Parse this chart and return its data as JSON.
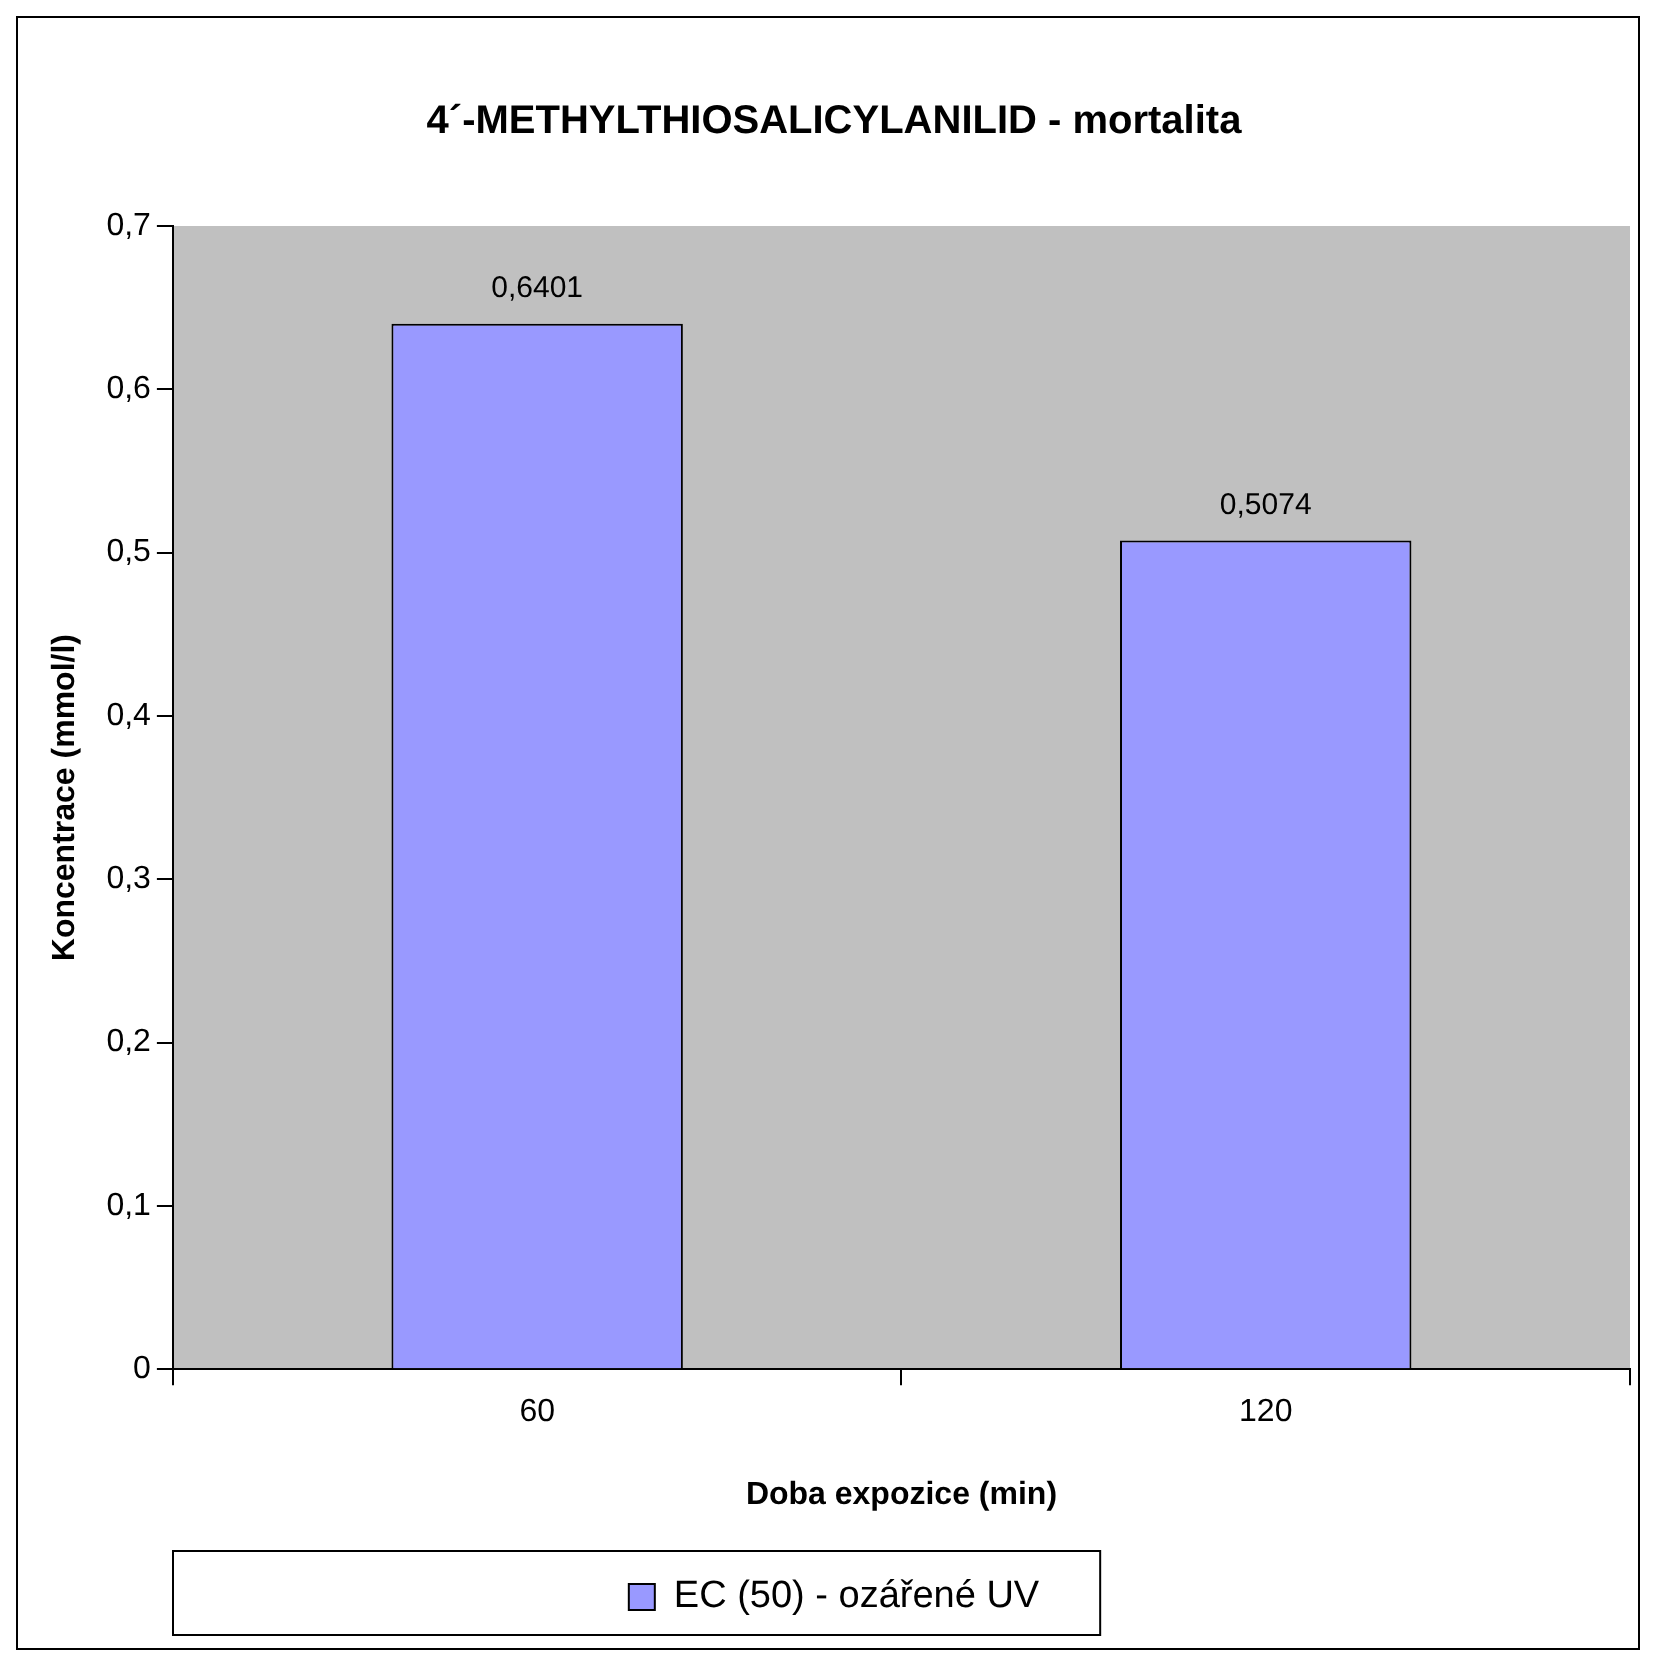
{
  "chart_data": {
    "type": "bar",
    "title": "4´-METHYLTHIOSALICYLANILID - mortalita",
    "xlabel": "Doba expozice (min)",
    "ylabel": "Koncentrace (mmol/l)",
    "categories": [
      "60",
      "120"
    ],
    "series": [
      {
        "name": "EC (50) - ozářené UV",
        "color": "#9999ff",
        "values": [
          0.6401,
          0.5074
        ],
        "value_labels": [
          "0,6401",
          "0,5074"
        ]
      }
    ],
    "ylim": [
      0,
      0.7
    ],
    "yticks": [
      {
        "value": 0,
        "label": "0"
      },
      {
        "value": 0.1,
        "label": "0,1"
      },
      {
        "value": 0.2,
        "label": "0,2"
      },
      {
        "value": 0.3,
        "label": "0,3"
      },
      {
        "value": 0.4,
        "label": "0,4"
      },
      {
        "value": 0.5,
        "label": "0,5"
      },
      {
        "value": 0.6,
        "label": "0,6"
      },
      {
        "value": 0.7,
        "label": "0,7"
      }
    ],
    "grid": false,
    "legend": "bottom"
  }
}
